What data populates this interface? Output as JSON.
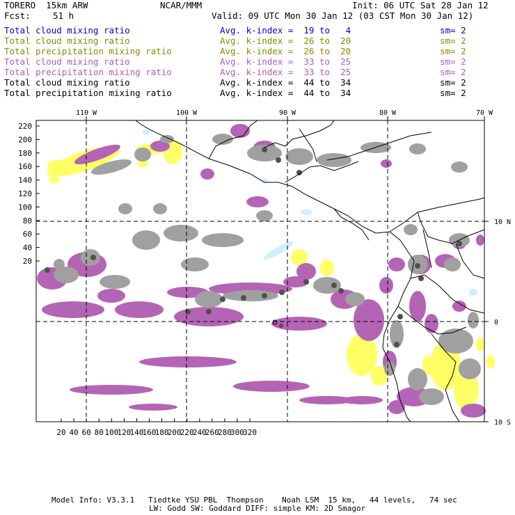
{
  "header": {
    "model": "TORERO  15km ARW",
    "org": "NCAR/MMM",
    "init": "Init: 06 UTC Sat 28 Jan 12",
    "fcst_label": "Fcst:",
    "fcst_value": "51 h",
    "valid": "Valid: 09 UTC Mon 30 Jan 12 (03 CST Mon 30 Jan 12)"
  },
  "legend": [
    {
      "field": "Total cloud mixing ratio",
      "kindex": "Avg. k-index =  19 to   4",
      "sm": "sm= 2",
      "color": "#0000cc"
    },
    {
      "field": "Total cloud mixing ratio",
      "kindex": "Avg. k-index =  26 to  20",
      "sm": "sm= 2",
      "color": "#8a8a00"
    },
    {
      "field": "Total precipitation mixing ratio",
      "kindex": "Avg. k-index =  26 to  20",
      "sm": "sm= 2",
      "color": "#8a8a00"
    },
    {
      "field": "Total cloud mixing ratio",
      "kindex": "Avg. k-index =  33 to  25",
      "sm": "sm= 2",
      "color": "#b45ab4"
    },
    {
      "field": "Total precipitation mixing ratio",
      "kindex": "Avg. k-index =  33 to  25",
      "sm": "sm= 2",
      "color": "#b45ab4"
    },
    {
      "field": "Total cloud mixing ratio",
      "kindex": "Avg. k-index =  44 to  34",
      "sm": "sm= 2",
      "color": "#000000"
    },
    {
      "field": "Total precipitation mixing ratio",
      "kindex": "Avg. k-index =  44 to  34",
      "sm": "sm= 2",
      "color": "#000000"
    }
  ],
  "map": {
    "lon_labels": [
      "110 W",
      "100 W",
      "90 W",
      "80 W",
      "70 W"
    ],
    "lat_labels": [
      "10 N",
      "0",
      "10 S"
    ],
    "y_ticks": [
      "220",
      "200",
      "180",
      "160",
      "140",
      "120",
      "100",
      "80",
      "60",
      "40",
      "20"
    ],
    "x_ticks": [
      "20",
      "40",
      "60",
      "80",
      "100",
      "120",
      "140",
      "160",
      "180",
      "200",
      "220",
      "240",
      "260",
      "280",
      "300",
      "320"
    ],
    "colors": {
      "yellow": "#ffff66",
      "light_blue": "#ccf0ff",
      "purple": "#b464b4",
      "gray": "#a0a0a0",
      "dark": "#505050"
    }
  },
  "footer": {
    "line1": "Model Info: V3.3.1   Tiedtke YSU PBL  Thompson    Noah LSM  15 km,   44 levels,   74 sec",
    "line2": "LW: Godd SW: Goddard DIFF: simple KM: 2D Smagor"
  }
}
